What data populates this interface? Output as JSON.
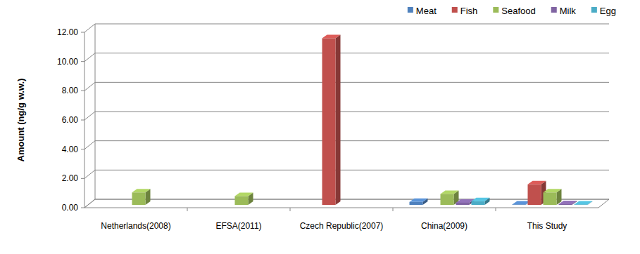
{
  "chart_data": {
    "type": "bar",
    "y_label": "Amount (ng/g w.w.)",
    "categories": [
      "Netherlands(2008)",
      "EFSA(2011)",
      "Czech Republic(2007)",
      "China(2009)",
      "This Study"
    ],
    "series": [
      {
        "name": "Meat",
        "color": "#4f81bd",
        "values": [
          null,
          null,
          null,
          0.2,
          0.03
        ]
      },
      {
        "name": "Fish",
        "color": "#c0504d",
        "values": [
          null,
          null,
          11.4,
          null,
          1.4
        ]
      },
      {
        "name": "Seafood",
        "color": "#9bbb59",
        "values": [
          0.85,
          0.6,
          null,
          0.75,
          0.85
        ]
      },
      {
        "name": "Milk",
        "color": "#8064a2",
        "values": [
          null,
          null,
          null,
          0.15,
          0.05
        ]
      },
      {
        "name": "Egg",
        "color": "#4bacc6",
        "values": [
          null,
          null,
          null,
          0.25,
          0.03
        ]
      }
    ],
    "ylim": [
      0,
      12
    ],
    "yticks": [
      {
        "value": 0,
        "label": "0.00"
      },
      {
        "value": 2,
        "label": "2.00"
      },
      {
        "value": 4,
        "label": "4.00"
      },
      {
        "value": 6,
        "label": "6.00"
      },
      {
        "value": 8,
        "label": "8.00"
      },
      {
        "value": 10,
        "label": "10.00"
      },
      {
        "value": 12,
        "label": "12.00"
      }
    ],
    "grid": true,
    "legend": "top-right"
  }
}
